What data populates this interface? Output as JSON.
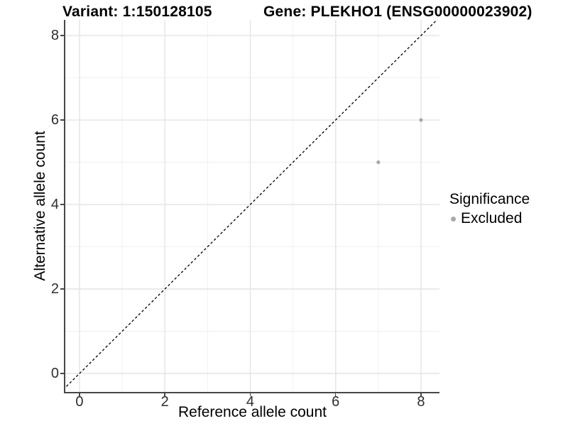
{
  "chart_data": {
    "type": "scatter",
    "titles": [
      "Variant: 1:150128105",
      "Gene: PLEKHO1 (ENSG00000023902)"
    ],
    "xlabel": "Reference allele count",
    "ylabel": "Alternative allele count",
    "xlim": [
      -0.3326,
      8.4326
    ],
    "ylim": [
      -0.437,
      8.3704
    ],
    "x_ticks": [
      0,
      2,
      4,
      6,
      8
    ],
    "y_ticks": [
      0,
      2,
      4,
      6,
      8
    ],
    "x_minor_ticks": [
      1,
      3,
      5,
      7
    ],
    "y_minor_ticks": [
      1,
      3,
      5,
      7
    ],
    "grid": true,
    "identity_line": {
      "style": "dashed",
      "color": "#000000"
    },
    "series": [
      {
        "name": "Excluded",
        "color": "#a9a9a9",
        "points": [
          {
            "x": 7,
            "y": 5
          },
          {
            "x": 8,
            "y": 6
          }
        ]
      }
    ],
    "legend": {
      "title": "Significance",
      "position": "right",
      "entries": [
        {
          "label": "Excluded",
          "color": "#a9a9a9"
        }
      ]
    },
    "colors": {
      "background": "#ffffff",
      "axis": "#474747",
      "grid_major": "#e4e4e4",
      "grid_minor": "#f0f0f0",
      "tick_text": "#2e2e2e",
      "title_text": "#000000",
      "point": "#a9a9a9"
    }
  }
}
